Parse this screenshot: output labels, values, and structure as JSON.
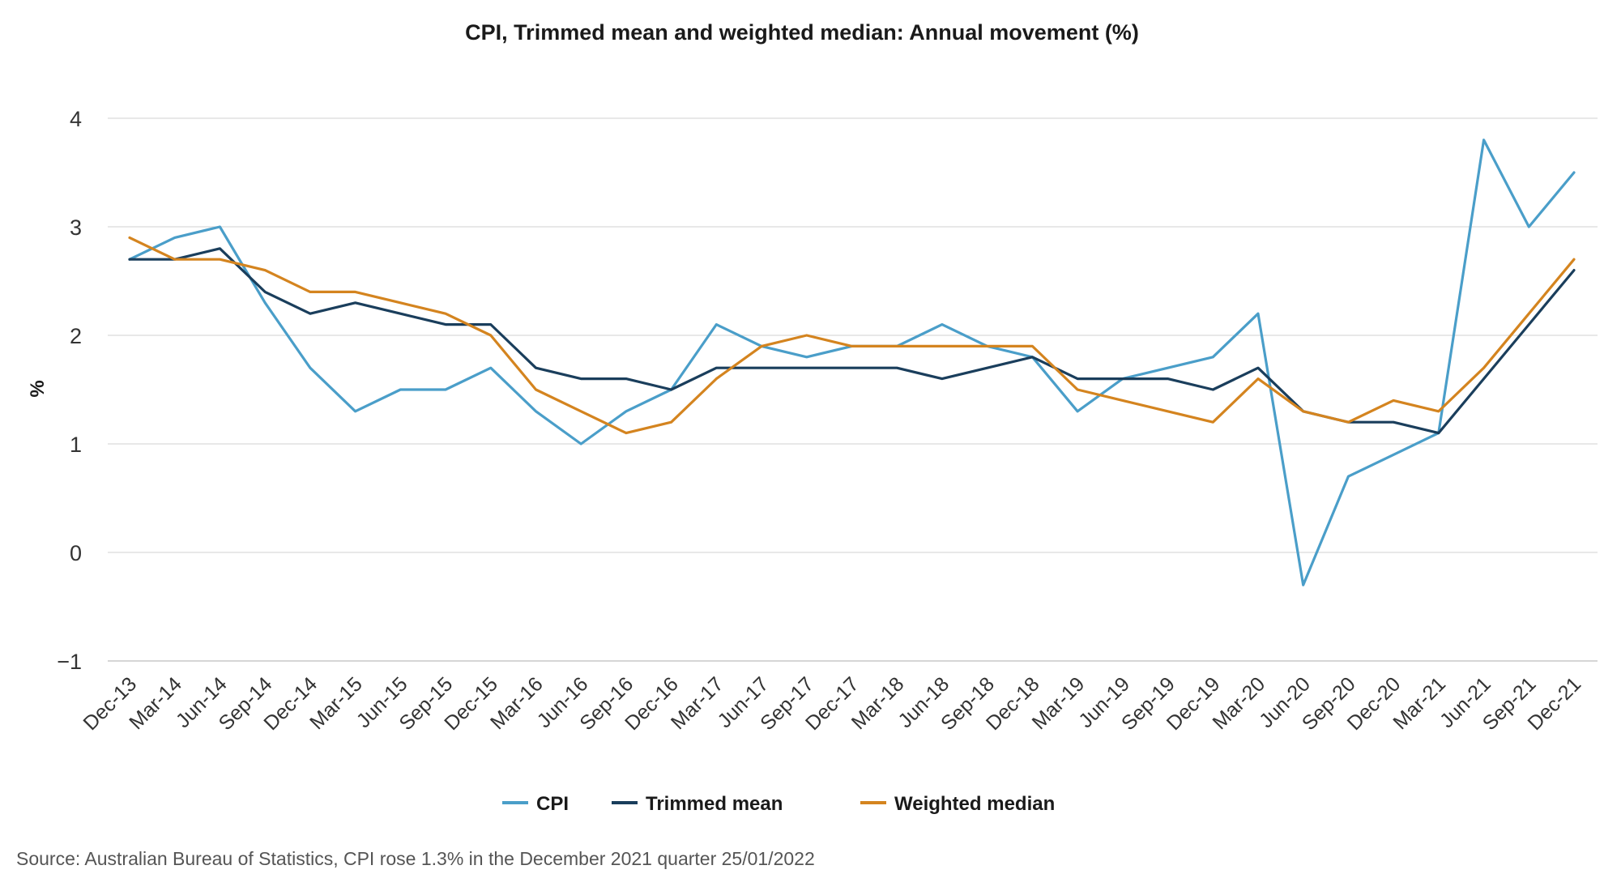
{
  "chart_data": {
    "type": "line",
    "title": "CPI, Trimmed mean and weighted median: Annual movement (%)",
    "ylabel": "%",
    "xlabel": "",
    "ylim": [
      -1,
      4
    ],
    "yticks": [
      -1,
      0,
      1,
      2,
      3,
      4
    ],
    "grid": "horizontal",
    "legend_position": "bottom-center",
    "categories": [
      "Dec-13",
      "Mar-14",
      "Jun-14",
      "Sep-14",
      "Dec-14",
      "Mar-15",
      "Jun-15",
      "Sep-15",
      "Dec-15",
      "Mar-16",
      "Jun-16",
      "Sep-16",
      "Dec-16",
      "Mar-17",
      "Jun-17",
      "Sep-17",
      "Dec-17",
      "Mar-18",
      "Jun-18",
      "Sep-18",
      "Dec-18",
      "Mar-19",
      "Jun-19",
      "Sep-19",
      "Dec-19",
      "Mar-20",
      "Jun-20",
      "Sep-20",
      "Dec-20",
      "Mar-21",
      "Jun-21",
      "Sep-21",
      "Dec-21"
    ],
    "series": [
      {
        "name": "CPI",
        "color": "#4a9ec9",
        "values": [
          2.7,
          2.9,
          3.0,
          2.3,
          1.7,
          1.3,
          1.5,
          1.5,
          1.7,
          1.3,
          1.0,
          1.3,
          1.5,
          2.1,
          1.9,
          1.8,
          1.9,
          1.9,
          2.1,
          1.9,
          1.8,
          1.3,
          1.6,
          1.7,
          1.8,
          2.2,
          -0.3,
          0.7,
          0.9,
          1.1,
          3.8,
          3.0,
          3.5
        ]
      },
      {
        "name": "Trimmed mean",
        "color": "#1a3e5c",
        "values": [
          2.7,
          2.7,
          2.8,
          2.4,
          2.2,
          2.3,
          2.2,
          2.1,
          2.1,
          1.7,
          1.6,
          1.6,
          1.5,
          1.7,
          1.7,
          1.7,
          1.7,
          1.7,
          1.6,
          1.7,
          1.8,
          1.6,
          1.6,
          1.6,
          1.5,
          1.7,
          1.3,
          1.2,
          1.2,
          1.1,
          1.6,
          2.1,
          2.6
        ]
      },
      {
        "name": "Weighted median",
        "color": "#d4841f",
        "values": [
          2.9,
          2.7,
          2.7,
          2.6,
          2.4,
          2.4,
          2.3,
          2.2,
          2.0,
          1.5,
          1.3,
          1.1,
          1.2,
          1.6,
          1.9,
          2.0,
          1.9,
          1.9,
          1.9,
          1.9,
          1.9,
          1.5,
          1.4,
          1.3,
          1.2,
          1.6,
          1.3,
          1.2,
          1.4,
          1.3,
          1.7,
          2.2,
          2.7
        ]
      }
    ],
    "source": "Source: Australian Bureau of Statistics, CPI rose 1.3% in the December 2021 quarter 25/01/2022"
  }
}
